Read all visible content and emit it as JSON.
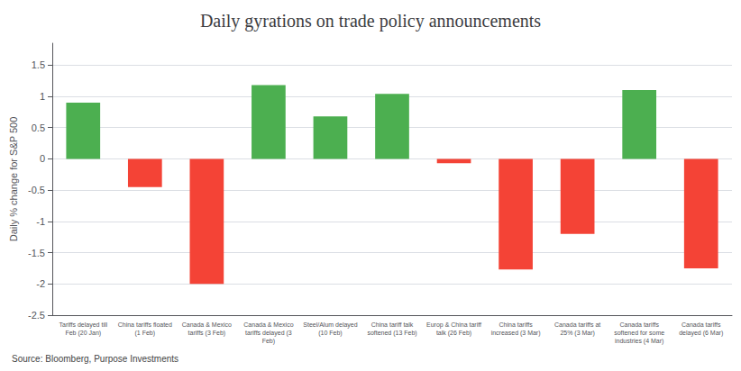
{
  "chart_data": {
    "type": "bar",
    "title": "Daily gyrations on trade policy announcements",
    "ylabel": "Daily % change for S&P 500",
    "source": "Source: Bloomberg, Purpose Investments",
    "categories": [
      "Tariffs delayed till\nFeb (20 Jan)",
      "China tariffs floated\n(1 Feb)",
      "Canada & Mexico\ntariffs (3 Feb)",
      "Canada & Mexico\ntariffs delayed (3\nFeb)",
      "Steel/Alum delayed\n(10 Feb)",
      "China tariff talk\nsoftened (13 Feb)",
      "Europ & China tariff\ntalk (26 Feb)",
      "China tariffs\nincreased (3 Mar)",
      "Canada tariffs at\n25% (3 Mar)",
      "Canada tariffs\nsoftened for some\nindustries (4 Mar)",
      "Canada tariffs\ndelayed (6 Mar)"
    ],
    "values": [
      0.9,
      -0.45,
      -2.0,
      1.18,
      0.68,
      1.04,
      -0.07,
      -1.77,
      -1.2,
      1.1,
      -1.75
    ],
    "colors": [
      "#4CAF50",
      "#F44336",
      "#F44336",
      "#4CAF50",
      "#4CAF50",
      "#4CAF50",
      "#F44336",
      "#F44336",
      "#F44336",
      "#4CAF50",
      "#F44336"
    ],
    "ylim": [
      -2.5,
      1.85
    ],
    "yticks": [
      -2.5,
      -2.0,
      -1.5,
      -1.0,
      -0.5,
      0.0,
      0.5,
      1.0,
      1.5
    ],
    "grid": true
  }
}
